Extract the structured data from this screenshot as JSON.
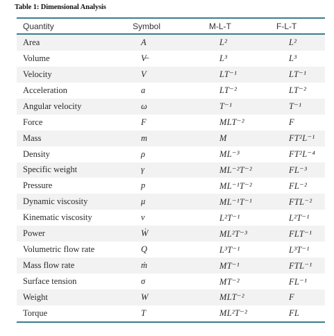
{
  "caption": "Table 1: Dimensional Analysis",
  "headers": {
    "quantity": "Quantity",
    "symbol": "Symbol",
    "mlt": "M-L-T",
    "flt": "F-L-T"
  },
  "rows": [
    {
      "quantity": "Area",
      "symbol": "A",
      "mlt": "L²",
      "flt": "L²"
    },
    {
      "quantity": "Volume",
      "symbol": "V̶",
      "mlt": "L³",
      "flt": "L³"
    },
    {
      "quantity": "Velocity",
      "symbol": "V",
      "mlt": "LT⁻¹",
      "flt": "LT⁻¹"
    },
    {
      "quantity": "Acceleration",
      "symbol": "a",
      "mlt": "LT⁻²",
      "flt": "LT⁻²"
    },
    {
      "quantity": "Angular velocity",
      "symbol": "ω",
      "mlt": "T⁻¹",
      "flt": "T⁻¹"
    },
    {
      "quantity": "Force",
      "symbol": "F",
      "mlt": "MLT⁻²",
      "flt": "F"
    },
    {
      "quantity": "Mass",
      "symbol": "m",
      "mlt": "M",
      "flt": "FT²L⁻¹"
    },
    {
      "quantity": "Density",
      "symbol": "ρ",
      "mlt": "ML⁻³",
      "flt": "FT²L⁻⁴"
    },
    {
      "quantity": "Specific weight",
      "symbol": "γ",
      "mlt": "ML⁻²T⁻²",
      "flt": "FL⁻³"
    },
    {
      "quantity": "Pressure",
      "symbol": "p",
      "mlt": "ML⁻¹T⁻²",
      "flt": "FL⁻²"
    },
    {
      "quantity": "Dynamic viscosity",
      "symbol": "μ",
      "mlt": "ML⁻¹T⁻¹",
      "flt": "FTL⁻²"
    },
    {
      "quantity": "Kinematic viscosity",
      "symbol": "ν",
      "mlt": "L²T⁻¹",
      "flt": "L²T⁻¹"
    },
    {
      "quantity": "Power",
      "symbol": "Ẇ",
      "mlt": "ML²T⁻³",
      "flt": "FLT⁻¹"
    },
    {
      "quantity": "Volumetric flow rate",
      "symbol": "Q",
      "mlt": "L³T⁻¹",
      "flt": "L³T⁻¹"
    },
    {
      "quantity": "Mass flow rate",
      "symbol": "ṁ",
      "mlt": "MT⁻¹",
      "flt": "FTL⁻¹"
    },
    {
      "quantity": "Surface tension",
      "symbol": "σ",
      "mlt": "MT⁻²",
      "flt": "FL⁻¹"
    },
    {
      "quantity": "Weight",
      "symbol": "W",
      "mlt": "MLT⁻²",
      "flt": "F"
    },
    {
      "quantity": "Torque",
      "symbol": "T",
      "mlt": "ML²T⁻²",
      "flt": "FL"
    }
  ]
}
